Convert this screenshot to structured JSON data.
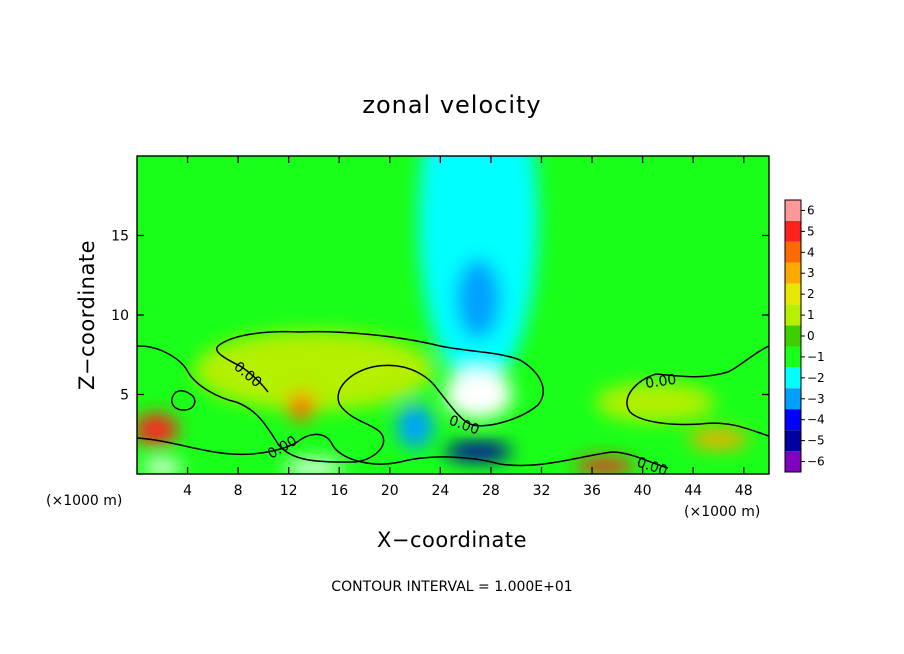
{
  "chart_data": {
    "type": "heatmap",
    "title": "zonal velocity",
    "xlabel": "X−coordinate",
    "ylabel": "Z−coordinate",
    "x_unit_label_left": "(×1000 m)",
    "x_unit_label_right": "(×1000 m)",
    "xlim": [
      0,
      50
    ],
    "ylim": [
      0,
      20
    ],
    "x_ticks": [
      4,
      8,
      12,
      16,
      20,
      24,
      28,
      32,
      36,
      40,
      44,
      48
    ],
    "x_tick_labels": [
      "4",
      "8",
      "12",
      "16",
      "20",
      "24",
      "28",
      "32",
      "36",
      "40",
      "44",
      "48"
    ],
    "y_ticks": [
      5,
      10,
      15
    ],
    "y_tick_labels": [
      "5",
      "10",
      "15"
    ],
    "footnote": "CONTOUR INTERVAL = 1.000E+01",
    "contour_label": "0.00",
    "colorbar": {
      "levels": [
        6,
        5,
        4,
        3,
        2,
        1,
        0,
        -1,
        -2,
        -3,
        -4,
        -5,
        -6
      ],
      "labels": [
        "6",
        "5",
        "4",
        "3",
        "2",
        "1",
        "0",
        "−1",
        "−2",
        "−3",
        "−4",
        "−5",
        "−6"
      ],
      "colors": [
        "#ff9898",
        "#ff2020",
        "#ff6a00",
        "#ffaa00",
        "#e6e600",
        "#b4f000",
        "#3cd000",
        "#19ff19",
        "#00ffff",
        "#00a0ff",
        "#0000ff",
        "#0000a0",
        "#8000c0"
      ]
    },
    "field": {
      "background_value": -1.3,
      "features": [
        {
          "x": 27,
          "z": 16,
          "value": -2.4
        },
        {
          "x": 27,
          "z": 11,
          "value": -2.8
        },
        {
          "x": 27,
          "z": 6,
          "value": -2.2
        },
        {
          "x": 14,
          "z": 6.5,
          "value": 1.0
        },
        {
          "x": 27,
          "z": 5,
          "value": 7.0
        },
        {
          "x": 1.5,
          "z": 2.8,
          "value": 5.0
        },
        {
          "x": 13,
          "z": 4.2,
          "value": 3.5
        },
        {
          "x": 22,
          "z": 3,
          "value": -3.5
        },
        {
          "x": 27,
          "z": 1.4,
          "value": -5.0
        },
        {
          "x": 37,
          "z": 0.5,
          "value": 5.0
        },
        {
          "x": 46,
          "z": 2.2,
          "value": 3.0
        },
        {
          "x": 2,
          "z": 0.4,
          "value": -6.5
        },
        {
          "x": 14,
          "z": 0.4,
          "value": -6.5
        },
        {
          "x": 41,
          "z": 4.5,
          "value": 1.0
        }
      ]
    }
  }
}
